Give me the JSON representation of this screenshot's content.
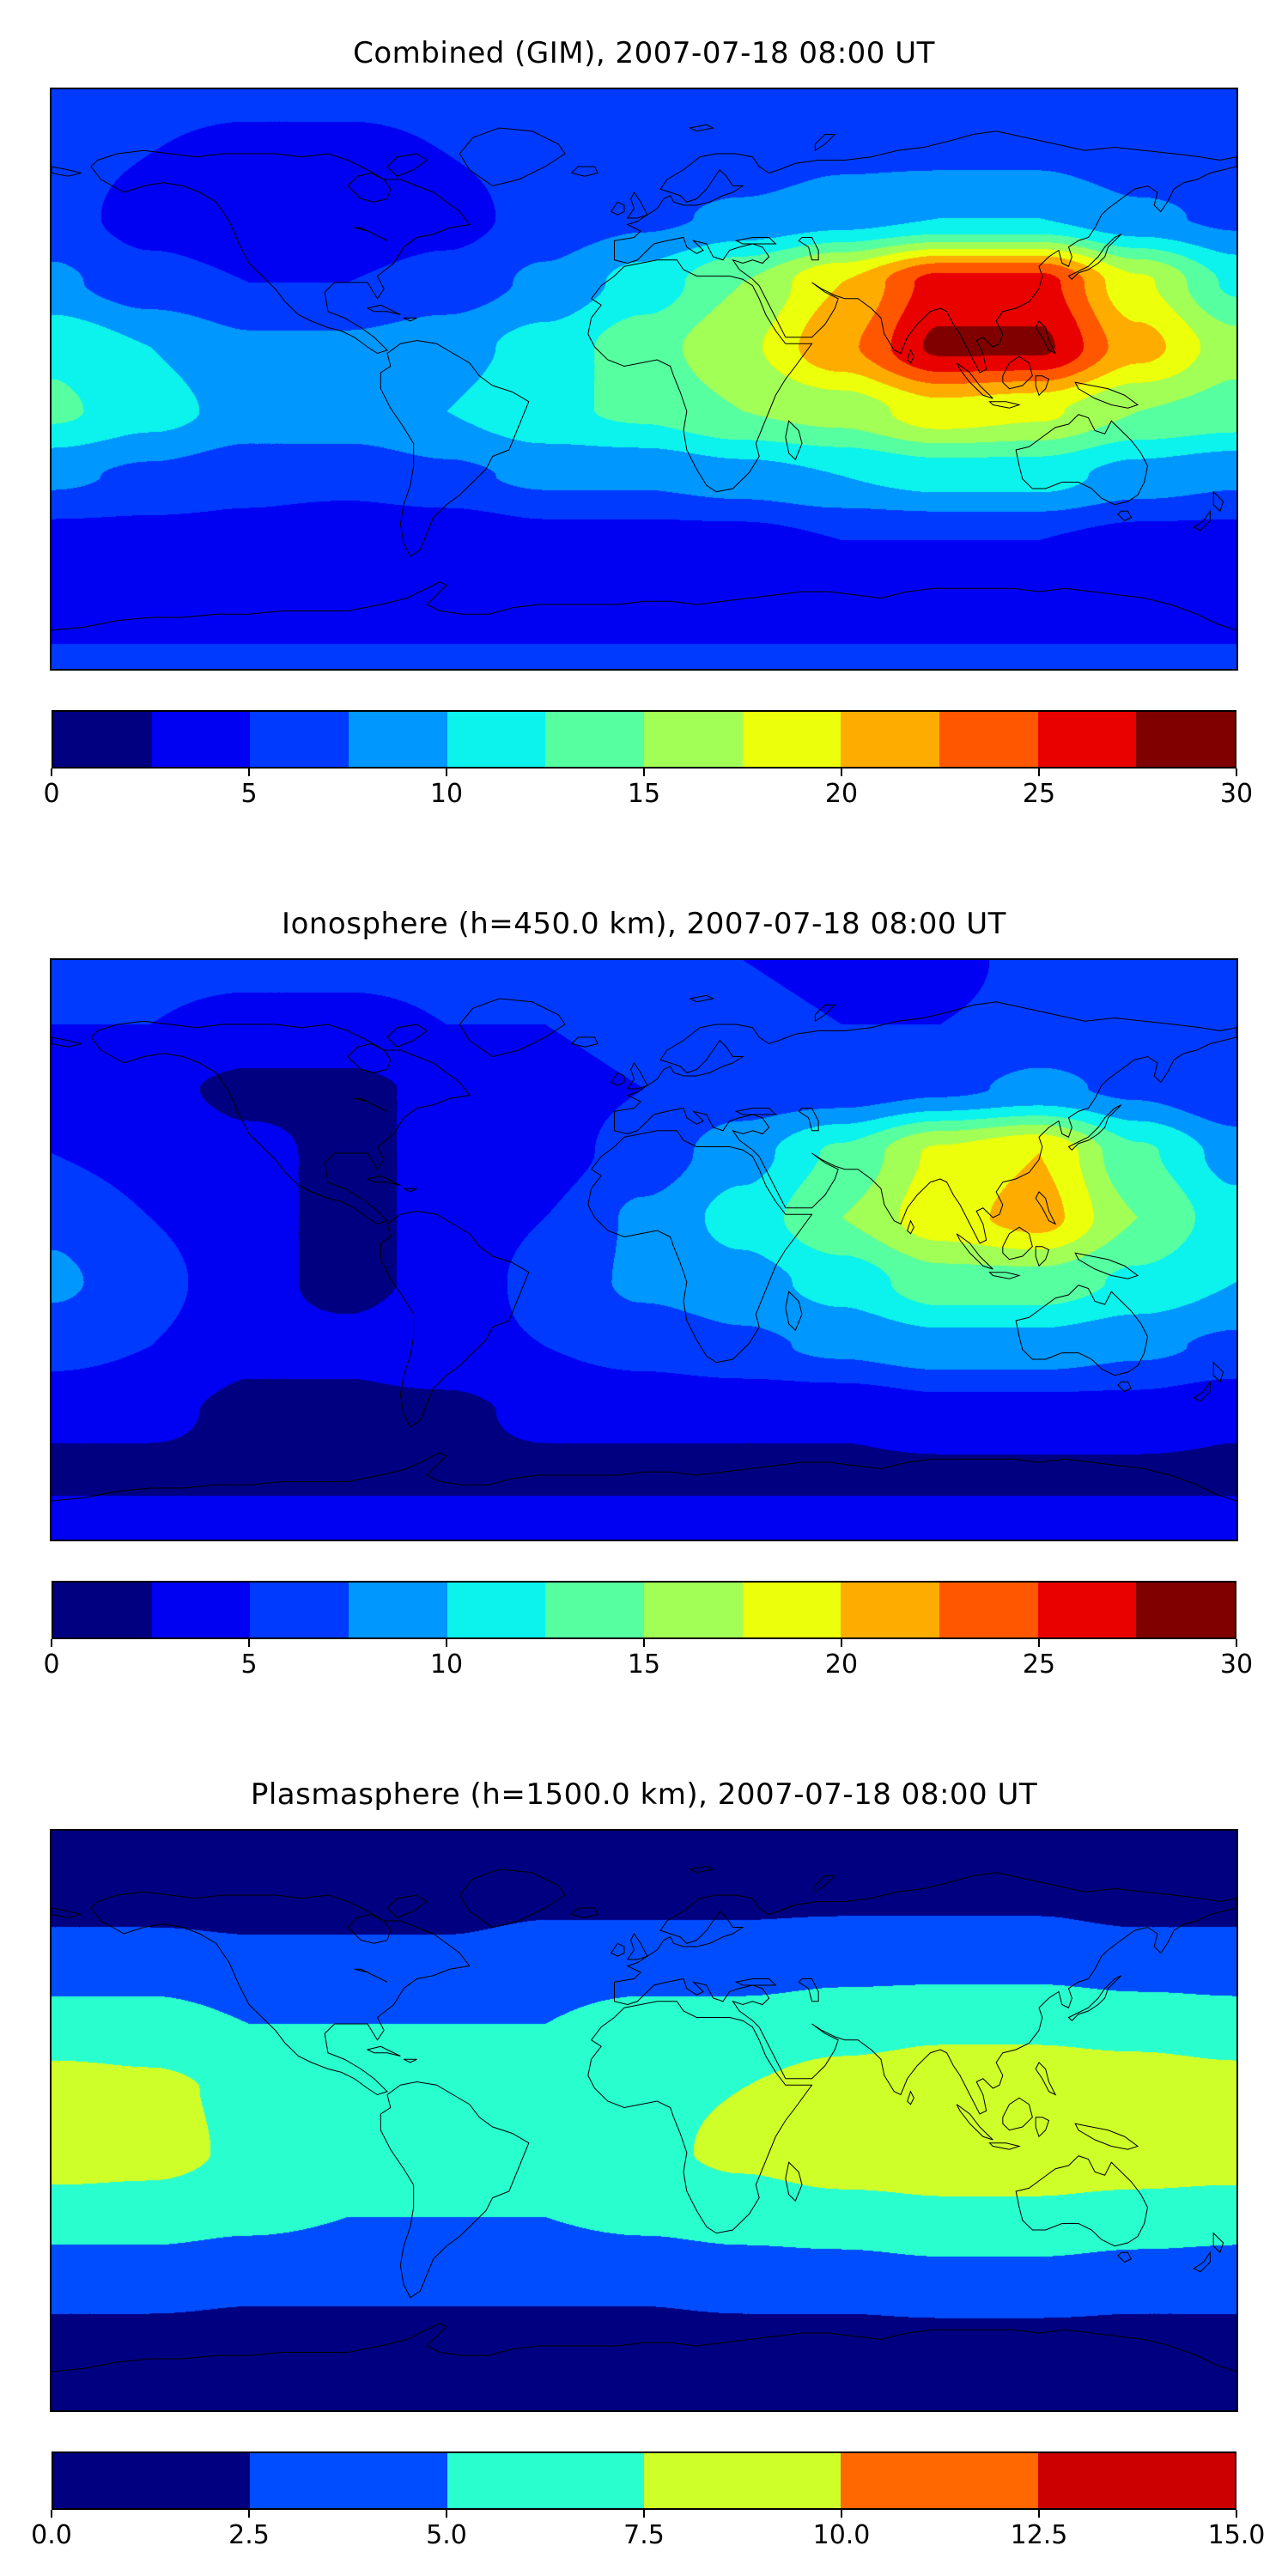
{
  "figure": {
    "background": "#ffffff",
    "projection": "equirectangular",
    "map_frame_color": "#000000",
    "coastline_color": "#000000"
  },
  "chart_data": [
    {
      "type": "heatmap",
      "title": "Combined (GIM), 2007-07-18 08:00 UT",
      "projection": "equirectangular",
      "lon_range": [
        -180,
        180
      ],
      "lat_range": [
        -90,
        90
      ],
      "colormap": "jet",
      "value_range": [
        0,
        30
      ],
      "n_levels": 12,
      "level_colors": [
        "#000080",
        "#0000f3",
        "#003aff",
        "#0097ff",
        "#0bf3ec",
        "#56ffa0",
        "#a1ff56",
        "#ecff0b",
        "#ffac00",
        "#ff5700",
        "#e90100",
        "#800000"
      ],
      "colorbar_ticks": [
        0,
        5,
        10,
        15,
        20,
        25,
        30
      ],
      "colorbar_tick_labels": [
        "0",
        "5",
        "10",
        "15",
        "20",
        "25",
        "30"
      ],
      "legend_position": "bottom",
      "grid": {
        "lons": [
          -180,
          -150,
          -120,
          -90,
          -60,
          -30,
          0,
          30,
          60,
          90,
          120,
          150,
          180
        ],
        "lats": [
          90,
          70,
          50,
          30,
          10,
          -10,
          -30,
          -50,
          -70,
          -90
        ],
        "tec_values": [
          [
            6,
            6,
            6,
            6,
            6,
            6,
            6,
            6,
            6,
            6,
            6,
            6,
            6
          ],
          [
            6,
            5,
            4,
            4,
            5,
            6,
            6,
            6,
            7,
            7,
            7,
            6,
            6
          ],
          [
            6,
            4,
            3,
            3,
            4,
            6,
            7,
            8,
            9,
            10,
            10,
            8,
            7
          ],
          [
            8,
            6,
            5,
            5,
            6,
            8,
            11,
            15,
            20,
            26,
            26,
            18,
            12
          ],
          [
            12,
            10,
            8,
            8,
            9,
            11,
            14,
            17,
            22,
            28,
            28,
            21,
            16
          ],
          [
            13,
            11,
            9,
            9,
            10,
            12,
            13,
            15,
            16,
            19,
            18,
            15,
            14
          ],
          [
            8,
            7,
            6,
            6,
            7,
            8,
            8,
            9,
            10,
            11,
            11,
            9,
            8
          ],
          [
            4,
            4,
            4,
            3,
            3,
            4,
            4,
            4,
            5,
            5,
            5,
            4,
            4
          ],
          [
            3,
            3,
            3,
            3,
            3,
            3,
            3,
            3,
            3,
            3,
            3,
            3,
            3
          ],
          [
            6,
            6,
            6,
            6,
            6,
            6,
            6,
            6,
            6,
            6,
            6,
            6,
            6
          ]
        ]
      },
      "features": "coastlines"
    },
    {
      "type": "heatmap",
      "title": "Ionosphere  (h=450.0 km), 2007-07-18 08:00 UT",
      "projection": "equirectangular",
      "lon_range": [
        -180,
        180
      ],
      "lat_range": [
        -90,
        90
      ],
      "colormap": "jet",
      "value_range": [
        0,
        30
      ],
      "n_levels": 12,
      "level_colors": [
        "#000080",
        "#0000f3",
        "#003aff",
        "#0097ff",
        "#0bf3ec",
        "#56ffa0",
        "#a1ff56",
        "#ecff0b",
        "#ffac00",
        "#ff5700",
        "#e90100",
        "#800000"
      ],
      "colorbar_ticks": [
        0,
        5,
        10,
        15,
        20,
        25,
        30
      ],
      "colorbar_tick_labels": [
        "0",
        "5",
        "10",
        "15",
        "20",
        "25",
        "30"
      ],
      "legend_position": "bottom",
      "grid": {
        "lons": [
          -180,
          -150,
          -120,
          -90,
          -60,
          -30,
          0,
          30,
          60,
          90,
          120,
          150,
          180
        ],
        "lats": [
          90,
          70,
          50,
          30,
          10,
          -10,
          -30,
          -50,
          -70,
          -90
        ],
        "tec_values": [
          [
            6,
            6,
            6,
            6,
            6,
            6,
            6,
            5,
            4,
            4,
            6,
            6,
            6
          ],
          [
            5,
            5,
            4,
            4,
            5,
            5,
            6,
            6,
            5,
            5,
            6,
            6,
            5
          ],
          [
            4,
            3,
            2,
            2,
            3,
            4,
            5,
            6,
            6,
            7,
            8,
            7,
            5
          ],
          [
            5,
            4,
            3,
            2,
            3,
            4,
            6,
            9,
            13,
            18,
            20,
            13,
            9
          ],
          [
            7,
            5,
            3,
            2,
            3,
            5,
            8,
            11,
            15,
            19,
            21,
            15,
            11
          ],
          [
            8,
            6,
            3,
            2,
            3,
            6,
            8,
            9,
            11,
            14,
            14,
            12,
            10
          ],
          [
            6,
            5,
            3,
            3,
            4,
            5,
            6,
            7,
            8,
            9,
            9,
            8,
            7
          ],
          [
            3,
            3,
            2,
            2,
            2,
            3,
            3,
            3,
            3,
            4,
            4,
            4,
            3
          ],
          [
            2,
            2,
            2,
            2,
            2,
            2,
            2,
            2,
            2,
            2,
            2,
            2,
            2
          ],
          [
            4,
            4,
            4,
            4,
            4,
            4,
            4,
            4,
            4,
            4,
            4,
            4,
            4
          ]
        ]
      },
      "features": "coastlines"
    },
    {
      "type": "heatmap",
      "title": "Plasmasphere (h=1500.0 km), 2007-07-18 08:00 UT",
      "projection": "equirectangular",
      "lon_range": [
        -180,
        180
      ],
      "lat_range": [
        -90,
        90
      ],
      "colormap": "jet",
      "value_range": [
        0,
        15
      ],
      "n_levels": 6,
      "level_colors": [
        "#000080",
        "#004dff",
        "#29ffce",
        "#ceff29",
        "#ff6800",
        "#cc0000"
      ],
      "colorbar_ticks": [
        0.0,
        2.5,
        5.0,
        7.5,
        10.0,
        12.5,
        15.0
      ],
      "colorbar_tick_labels": [
        "0.0",
        "2.5",
        "5.0",
        "7.5",
        "10.0",
        "12.5",
        "15.0"
      ],
      "legend_position": "bottom",
      "grid": {
        "lons": [
          -180,
          -150,
          -120,
          -90,
          -60,
          -30,
          0,
          30,
          60,
          90,
          120,
          150,
          180
        ],
        "lats": [
          90,
          70,
          50,
          30,
          10,
          -10,
          -30,
          -50,
          -70,
          -90
        ],
        "tec_values": [
          [
            1.5,
            1.5,
            1.5,
            1.5,
            1.5,
            1.5,
            1.5,
            1.5,
            1.5,
            1.5,
            1.5,
            1.5,
            1.5
          ],
          [
            1.5,
            1.5,
            1.5,
            1.5,
            1.5,
            2,
            2,
            2,
            2,
            2,
            2,
            1.5,
            1.5
          ],
          [
            3.5,
            3.5,
            3,
            3,
            3,
            3.5,
            3.5,
            3.5,
            4,
            4,
            4,
            3.5,
            3.5
          ],
          [
            6,
            6,
            5,
            5,
            5,
            5,
            6,
            6,
            6.5,
            7,
            7,
            6.5,
            6
          ],
          [
            8.5,
            8,
            7,
            6,
            6,
            6.5,
            7,
            7.5,
            8.5,
            9,
            9,
            9,
            8.5
          ],
          [
            9,
            8.5,
            7,
            6,
            6,
            6.5,
            7,
            8,
            9,
            9,
            9,
            9,
            9
          ],
          [
            6,
            6,
            5.5,
            5,
            5,
            5,
            5.5,
            6,
            6.5,
            7,
            7,
            6.5,
            6
          ],
          [
            3.5,
            3.5,
            3,
            3,
            3,
            3,
            3,
            3.5,
            3.5,
            4,
            4,
            3.5,
            3.5
          ],
          [
            1.5,
            1.5,
            1.5,
            1.5,
            1.5,
            1.5,
            1.5,
            1.5,
            1.5,
            1.5,
            1.5,
            1.5,
            1.5
          ],
          [
            1,
            1,
            1,
            1,
            1,
            1,
            1,
            1,
            1,
            1,
            1,
            1,
            1
          ]
        ]
      },
      "features": "coastlines"
    }
  ]
}
